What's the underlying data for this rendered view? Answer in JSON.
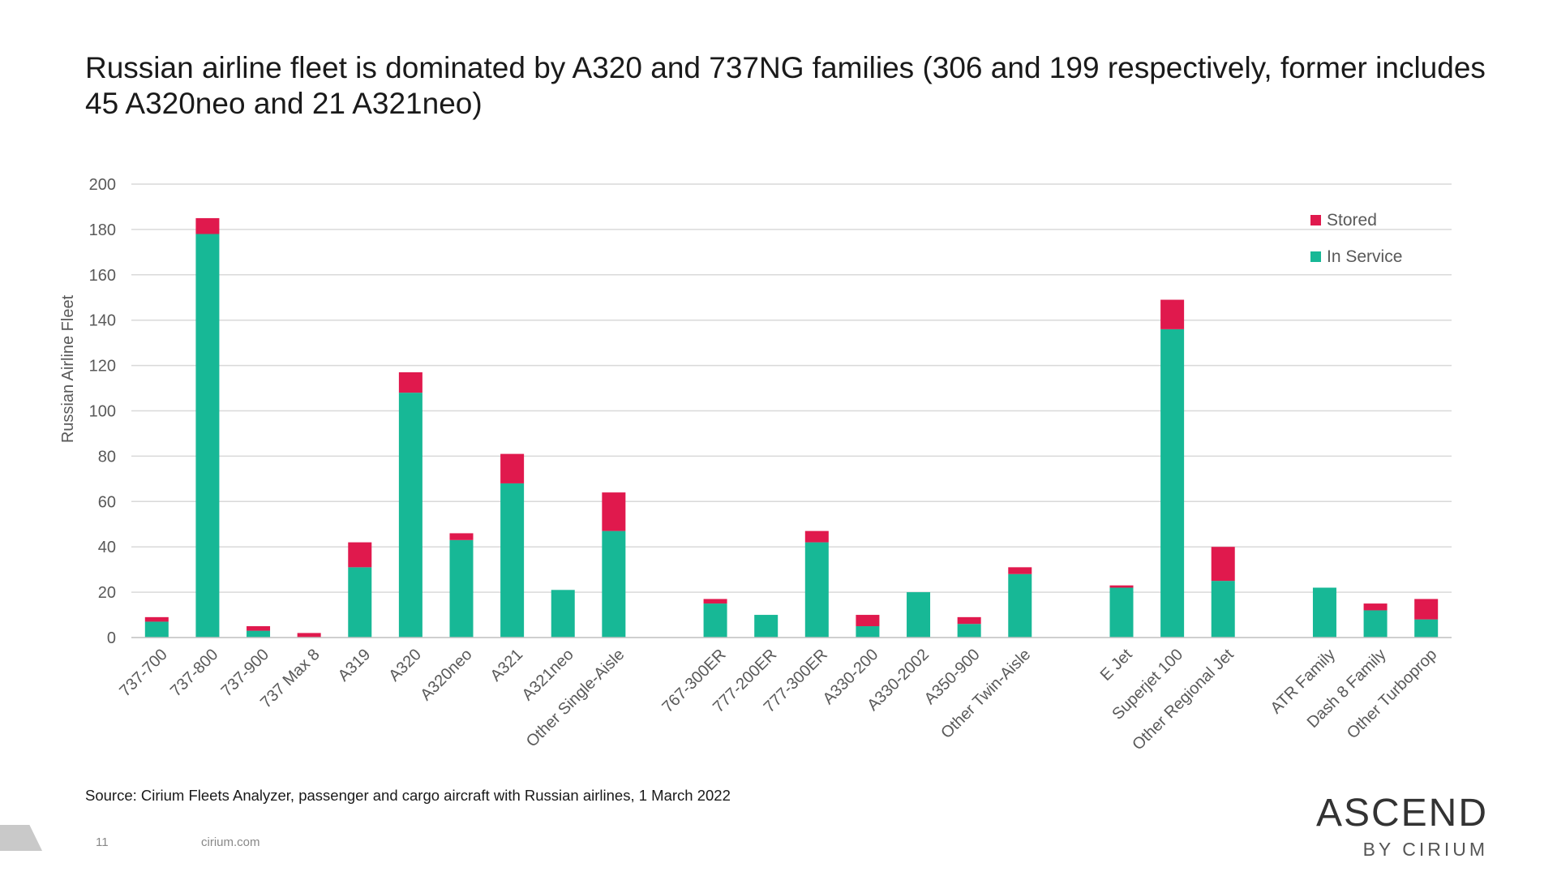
{
  "slide": {
    "title": "Russian airline fleet is dominated by A320 and 737NG families (306 and 199 respectively, former includes 45 A320neo and 21 A321neo)",
    "source": "Source: Cirium Fleets Analyzer, passenger and cargo aircraft with Russian airlines, 1 March 2022",
    "page_number": "11",
    "website": "cirium.com",
    "brand_main": "ASCEND",
    "brand_sub": "BY CIRIUM"
  },
  "colors": {
    "stored": "#e0194d",
    "in_service": "#17b896",
    "grid": "#d9d9d9",
    "axis_text": "#595959"
  },
  "chart_data": {
    "type": "bar",
    "stacked": true,
    "ylabel": "Russian Airline Fleet",
    "ylim": [
      0,
      200
    ],
    "yticks": [
      0,
      20,
      40,
      60,
      80,
      100,
      120,
      140,
      160,
      180,
      200
    ],
    "grid": true,
    "legend_position": "top-right",
    "categories": [
      "737-700",
      "737-800",
      "737-900",
      "737 Max 8",
      "A319",
      "A320",
      "A320neo",
      "A321",
      "A321neo",
      "Other Single-Aisle",
      "",
      "767-300ER",
      "777-200ER",
      "777-300ER",
      "A330-200",
      "A330-2002",
      "A350-900",
      "Other Twin-Aisle",
      "",
      "E Jet",
      "Superjet 100",
      "Other Regional Jet",
      "",
      "ATR Family",
      "Dash 8 Family",
      "Other Turboprop"
    ],
    "series": [
      {
        "name": "In Service",
        "values": [
          7,
          178,
          3,
          0,
          31,
          108,
          43,
          68,
          21,
          47,
          null,
          15,
          10,
          42,
          5,
          20,
          6,
          28,
          null,
          22,
          136,
          25,
          null,
          22,
          12,
          8
        ]
      },
      {
        "name": "Stored",
        "values": [
          2,
          7,
          2,
          2,
          11,
          9,
          3,
          13,
          0,
          17,
          null,
          2,
          0,
          5,
          5,
          0,
          3,
          3,
          null,
          1,
          13,
          15,
          null,
          0,
          3,
          9
        ]
      }
    ],
    "legend": [
      "Stored",
      "In Service"
    ]
  }
}
